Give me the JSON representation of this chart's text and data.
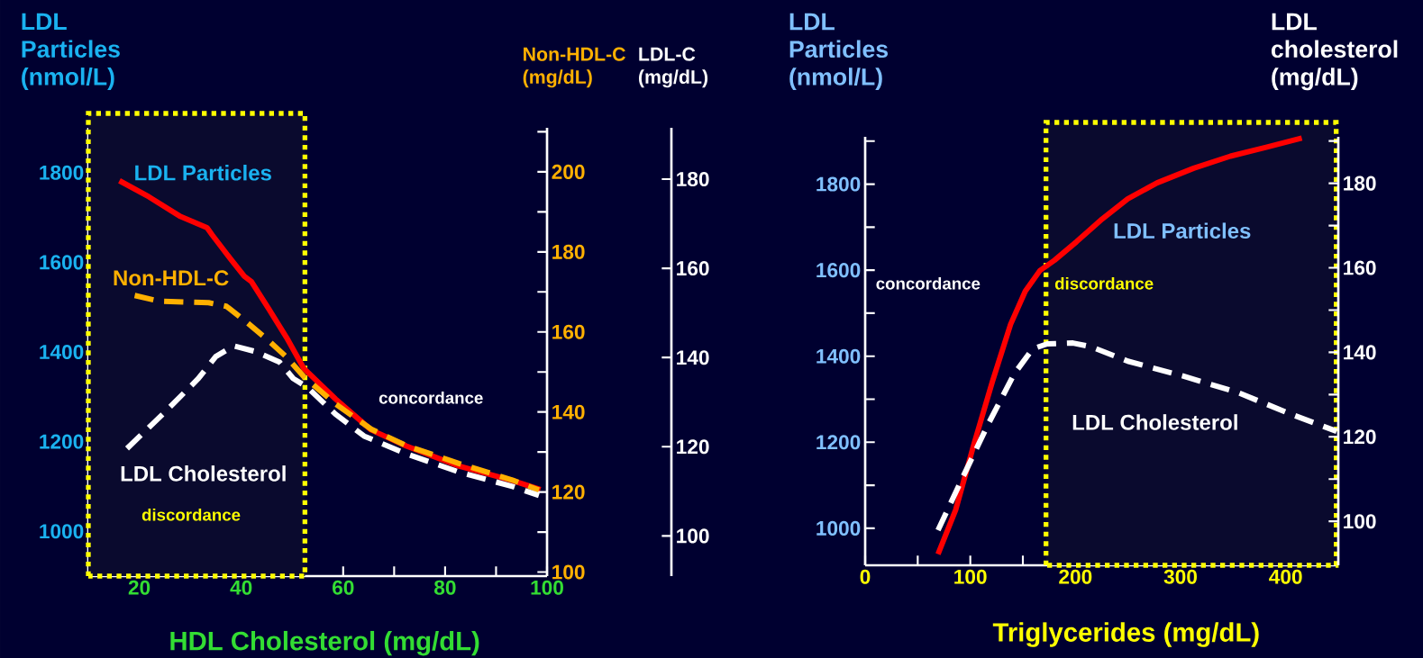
{
  "chart_data": [
    {
      "type": "line",
      "xlabel": "HDL Cholesterol (mg/dL)",
      "ylabel": "LDL Particles (nmol/L)",
      "y2label": "Non-HDL-C (mg/dL)",
      "y3label": "LDL-C (mg/dL)",
      "xlim": [
        10,
        100
      ],
      "xticks": [
        20,
        {
          "value": 30,
          "label": null
        },
        40,
        {
          "value": 50,
          "label": null
        },
        60,
        {
          "value": 70,
          "label": null
        },
        80,
        {
          "value": 90,
          "label": null
        },
        100
      ],
      "ylim": [
        900,
        1900
      ],
      "yticks": [
        1000,
        {
          "value": 1100,
          "label": null
        },
        1200,
        {
          "value": 1300,
          "label": null
        },
        1400,
        {
          "value": 1500,
          "label": null
        },
        1600,
        {
          "value": 1700,
          "label": null
        },
        1800,
        {
          "value": 1900,
          "label": null
        }
      ],
      "y2lim": [
        99,
        211
      ],
      "y2ticks": [
        100,
        {
          "value": 110,
          "label": null
        },
        120,
        {
          "value": 130,
          "label": null
        },
        140,
        {
          "value": 150,
          "label": null
        },
        160,
        {
          "value": 170,
          "label": null
        },
        180,
        {
          "value": 190,
          "label": null
        },
        200,
        {
          "value": 210,
          "label": null
        }
      ],
      "y3lim": [
        91,
        191.5
      ],
      "y3ticks": [
        100,
        120,
        140,
        160,
        180
      ],
      "series": [
        {
          "name": "LDL Particles",
          "color": "#ff0000",
          "axis": "y",
          "x": [
            16.1,
            21.9,
            28.1,
            33.3,
            34.3,
            37.8,
            40.6,
            42,
            45.4,
            48.9,
            52.3,
            58.5,
            65.5,
            72.4,
            82.8,
            93.2,
            98.7
          ],
          "values": [
            1782,
            1746,
            1702,
            1677,
            1661,
            1609,
            1569,
            1557,
            1496,
            1432,
            1363,
            1295,
            1226,
            1190,
            1145,
            1113,
            1093
          ]
        },
        {
          "name": "Non-HDL-C",
          "color": "#ffb000",
          "axis": "y2",
          "line_style": "dashed",
          "x": [
            19.1,
            23.9,
            33.6,
            37.1,
            41.2,
            45.4,
            48.9,
            52.3,
            58.5,
            65.5,
            72.4,
            82.8,
            93.2,
            98.4
          ],
          "values": [
            169.1,
            167.7,
            167.3,
            166.4,
            162.3,
            157.8,
            153.7,
            148.8,
            142,
            135.7,
            131.6,
            127.1,
            123,
            120.5
          ]
        },
        {
          "name": "LDL Cholesterol",
          "color": "#ffffff",
          "axis": "y3",
          "line_style": "dashed",
          "x": [
            17.6,
            24.6,
            31.6,
            35,
            38.5,
            42.6,
            47.5,
            50.2,
            53,
            58.5,
            64.1,
            72.4,
            82.8,
            93.2,
            98.4
          ],
          "values": [
            119.6,
            127.3,
            135.3,
            140.2,
            142.6,
            141.4,
            139,
            135.3,
            133.3,
            127.3,
            122.4,
            118.4,
            114.3,
            111.1,
            109.1
          ]
        }
      ],
      "bands": [
        {
          "axis": "x",
          "from": 10,
          "to": 52.5,
          "label": "discordance",
          "color": "#ffff00"
        }
      ],
      "annotations": [
        "concordance"
      ]
    },
    {
      "type": "line",
      "xlabel": "Triglycerides (mg/dL)",
      "ylabel": "LDL Particles (nmol/L)",
      "y2label": "LDL cholesterol (mg/dL)",
      "xlim": [
        0,
        450
      ],
      "xticks": [
        0,
        {
          "value": 50,
          "label": null
        },
        100,
        {
          "value": 150,
          "label": null
        },
        200,
        {
          "value": 250,
          "label": null
        },
        300,
        {
          "value": 350,
          "label": null
        },
        400
      ],
      "ylim": [
        914,
        1910
      ],
      "yticks": [
        1000,
        {
          "value": 1100,
          "label": null
        },
        1200,
        {
          "value": 1300,
          "label": null
        },
        1400,
        {
          "value": 1500,
          "label": null
        },
        1600,
        {
          "value": 1700,
          "label": null
        },
        1800,
        {
          "value": 1900,
          "label": null
        }
      ],
      "y2lim": [
        89.6,
        191
      ],
      "y2ticks": [
        100,
        {
          "value": 110,
          "label": null
        },
        120,
        {
          "value": 130,
          "label": null
        },
        140,
        {
          "value": 150,
          "label": null
        },
        160,
        {
          "value": 170,
          "label": null
        },
        180,
        {
          "value": 190,
          "label": null
        }
      ],
      "series": [
        {
          "name": "LDL Particles",
          "color": "#ff0000",
          "axis": "y",
          "x": [
            69.3,
            86.1,
            103.5,
            120.9,
            138.3,
            152.3,
            166.2,
            180.1,
            201,
            225.4,
            249.8,
            277.7,
            312.5,
            347.4,
            382.2,
            415.3
          ],
          "values": [
            940,
            1043,
            1196,
            1340,
            1474,
            1551,
            1599,
            1623,
            1666,
            1719,
            1766,
            1803,
            1837,
            1865,
            1886,
            1907
          ]
        },
        {
          "name": "LDL Cholesterol",
          "color": "#ffffff",
          "axis": "y2",
          "line_style": "dashed",
          "x": [
            69.3,
            93,
            117.4,
            141.8,
            159.2,
            173.2,
            197.6,
            215,
            249.8,
            302.1,
            354.4,
            406.6,
            448.4
          ],
          "values": [
            97.9,
            110.5,
            123.2,
            134.9,
            140.8,
            142,
            142.2,
            141.3,
            137.9,
            134.4,
            130.5,
            125.2,
            121.3
          ]
        }
      ],
      "bands": [
        {
          "axis": "x",
          "from": 172,
          "to": 448,
          "label": "discordance",
          "color": "#ffff00"
        }
      ],
      "annotations": [
        "concordance"
      ]
    }
  ]
}
